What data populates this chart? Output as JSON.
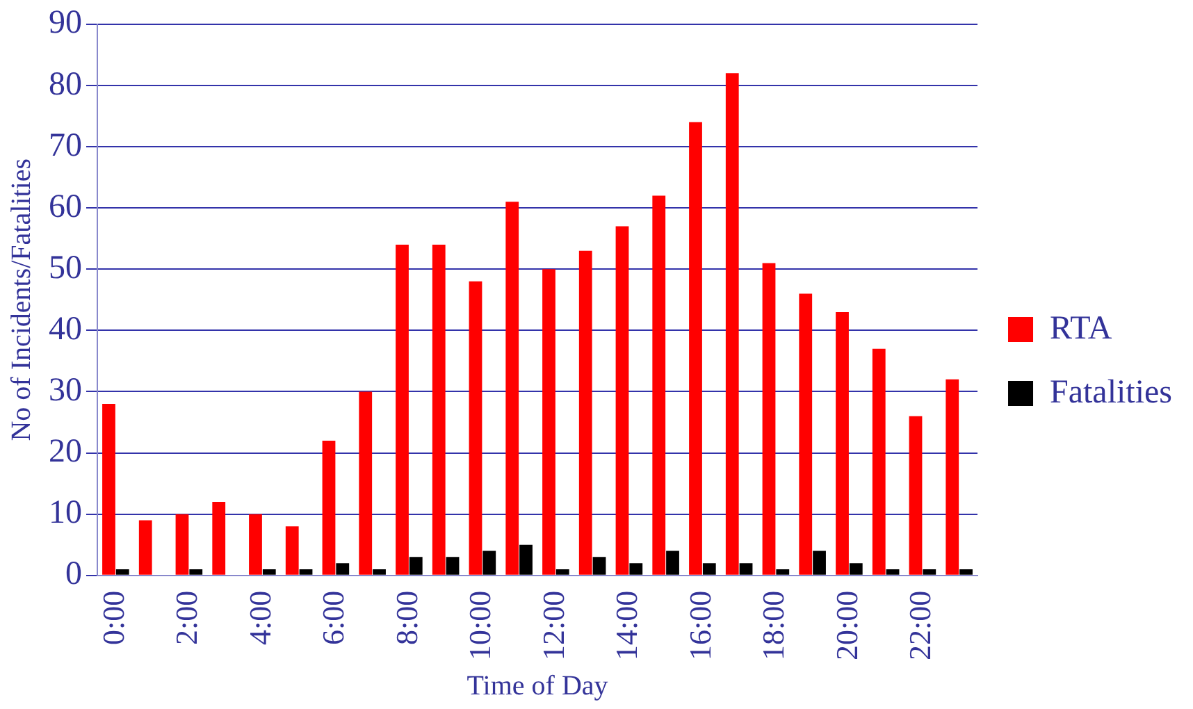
{
  "chart_data": {
    "type": "bar",
    "xlabel": "Time of Day",
    "ylabel": "No of Incidents/Fatalities",
    "categories": [
      "0:00",
      null,
      "2:00",
      null,
      "4:00",
      null,
      "6:00",
      null,
      "8:00",
      null,
      "10:00",
      null,
      "12:00",
      null,
      "14:00",
      null,
      "16:00",
      null,
      "18:00",
      null,
      "20:00",
      null,
      "22:00",
      null
    ],
    "series": [
      {
        "name": "RTA",
        "color": "#ff0000",
        "values": [
          28,
          9,
          10,
          12,
          10,
          8,
          22,
          30,
          54,
          54,
          48,
          61,
          50,
          53,
          57,
          62,
          74,
          82,
          51,
          46,
          43,
          37,
          26,
          32
        ]
      },
      {
        "name": "Fatalities",
        "color": "#000000",
        "values": [
          1,
          0,
          1,
          0,
          1,
          1,
          2,
          1,
          3,
          3,
          4,
          5,
          1,
          3,
          2,
          4,
          2,
          2,
          1,
          4,
          2,
          1,
          1,
          1
        ]
      }
    ],
    "ylim": [
      0,
      90
    ],
    "yticks": [
      0,
      10,
      20,
      30,
      40,
      50,
      60,
      70,
      80,
      90
    ],
    "grid": "y",
    "legend": "right"
  }
}
